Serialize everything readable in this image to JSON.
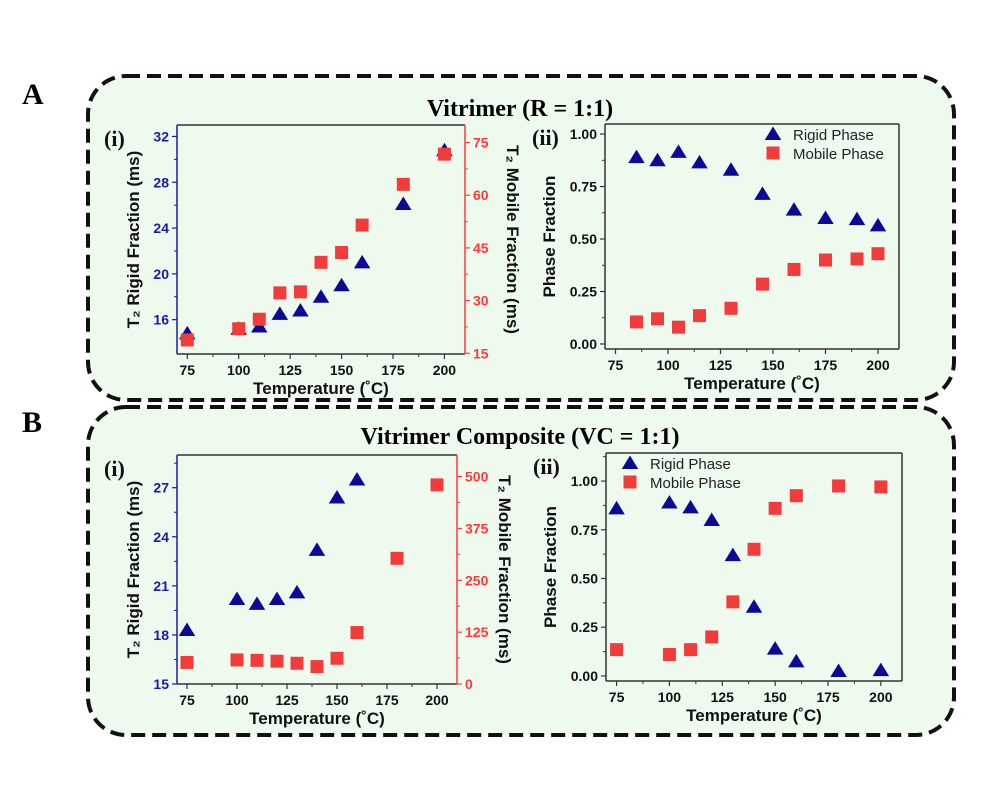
{
  "figure": {
    "panel_labels": [
      "A",
      "B"
    ],
    "panel_titles": [
      "Vitrimer (R = 1:1)",
      "Vitrimer Composite (VC = 1:1)"
    ],
    "panel_background": "#eefaee",
    "rigid_color": "#0a0a96",
    "mobile_color": "#f23c3c"
  },
  "chart_data": [
    {
      "panel": "A",
      "sublabel": "(i)",
      "type": "scatter",
      "xlabel": "Temperature (˚C)",
      "ylabel": "T₂ Rigid Fraction (ms)",
      "y2label": "T₂ Mobile Fraction (ms)",
      "xlim": [
        70,
        210
      ],
      "ylim": [
        13,
        33
      ],
      "y2lim": [
        14.8,
        80
      ],
      "xticks": [
        "75",
        "100",
        "125",
        "150",
        "175",
        "200"
      ],
      "yticks": [
        "16",
        "20",
        "24",
        "28",
        "32"
      ],
      "y2ticks": [
        "15",
        "30",
        "45",
        "60",
        "75"
      ],
      "series": [
        {
          "axis": "left",
          "marker": "triangle",
          "x": [
            75,
            100,
            110,
            120,
            130,
            140,
            150,
            160,
            180,
            200
          ],
          "y": [
            14.8,
            15.2,
            15.4,
            16.5,
            16.8,
            18.0,
            19.0,
            21.0,
            26.1,
            30.8
          ]
        },
        {
          "axis": "right",
          "marker": "square",
          "x": [
            75,
            100,
            110,
            120,
            130,
            140,
            150,
            160,
            180,
            200
          ],
          "y": [
            18.8,
            22.0,
            24.7,
            32.2,
            32.5,
            40.9,
            43.7,
            51.5,
            63.1,
            71.7
          ]
        }
      ]
    },
    {
      "panel": "A",
      "sublabel": "(ii)",
      "type": "scatter",
      "xlabel": "Temperature (˚C)",
      "ylabel": "Phase Fraction",
      "xlim": [
        70,
        210
      ],
      "ylim": [
        -0.024,
        1.048
      ],
      "xticks": [
        "75",
        "100",
        "125",
        "150",
        "175",
        "200"
      ],
      "yticks": [
        "0.00",
        "0.25",
        "0.50",
        "0.75",
        "1.00"
      ],
      "legend": "top-right",
      "series": [
        {
          "name": "Rigid Phase",
          "marker": "triangle",
          "x": [
            85,
            95,
            105,
            115,
            130,
            145,
            160,
            175,
            190,
            200
          ],
          "y": [
            0.89,
            0.875,
            0.915,
            0.865,
            0.83,
            0.715,
            0.64,
            0.6,
            0.595,
            0.565
          ]
        },
        {
          "name": "Mobile Phase",
          "marker": "square",
          "x": [
            85,
            95,
            105,
            115,
            130,
            145,
            160,
            175,
            190,
            200
          ],
          "y": [
            0.105,
            0.12,
            0.08,
            0.135,
            0.17,
            0.285,
            0.355,
            0.4,
            0.405,
            0.43
          ]
        }
      ]
    },
    {
      "panel": "B",
      "sublabel": "(i)",
      "type": "scatter",
      "xlabel": "Temperature (˚C)",
      "ylabel": "T₂ Rigid Fraction (ms)",
      "y2label": "T₂ Mobile Fraction (ms)",
      "xlim": [
        70,
        210
      ],
      "ylim": [
        15,
        29
      ],
      "y2lim": [
        0,
        552
      ],
      "xticks": [
        "75",
        "100",
        "125",
        "150",
        "175",
        "200"
      ],
      "yticks": [
        "15",
        "18",
        "21",
        "24",
        "27"
      ],
      "y2ticks": [
        "0",
        "125",
        "250",
        "375",
        "500"
      ],
      "series": [
        {
          "axis": "left",
          "marker": "triangle",
          "x": [
            75,
            100,
            110,
            120,
            130,
            140,
            150,
            160
          ],
          "y": [
            18.3,
            20.2,
            19.9,
            20.2,
            20.6,
            23.2,
            26.4,
            27.5
          ]
        },
        {
          "axis": "right",
          "marker": "square",
          "x": [
            75,
            100,
            110,
            120,
            130,
            140,
            150,
            160,
            180,
            200
          ],
          "y": [
            52,
            58,
            57,
            55,
            50,
            42,
            62,
            124,
            303,
            480
          ]
        }
      ]
    },
    {
      "panel": "B",
      "sublabel": "(ii)",
      "type": "scatter",
      "xlabel": "Temperature (˚C)",
      "ylabel": "Phase Fraction",
      "xlim": [
        70,
        210
      ],
      "ylim": [
        -0.026,
        1.144
      ],
      "xticks": [
        "75",
        "100",
        "125",
        "150",
        "175",
        "200"
      ],
      "yticks": [
        "0.00",
        "0.25",
        "0.50",
        "0.75",
        "1.00"
      ],
      "legend": "top-left",
      "series": [
        {
          "name": "Rigid Phase",
          "marker": "triangle",
          "x": [
            75,
            100,
            110,
            120,
            130,
            140,
            150,
            160,
            180,
            200
          ],
          "y": [
            0.86,
            0.89,
            0.865,
            0.8,
            0.62,
            0.355,
            0.14,
            0.075,
            0.025,
            0.03
          ]
        },
        {
          "name": "Mobile Phase",
          "marker": "square",
          "x": [
            75,
            100,
            110,
            120,
            130,
            140,
            150,
            160,
            180,
            200
          ],
          "y": [
            0.135,
            0.11,
            0.135,
            0.2,
            0.38,
            0.65,
            0.86,
            0.925,
            0.975,
            0.97
          ]
        }
      ]
    }
  ]
}
